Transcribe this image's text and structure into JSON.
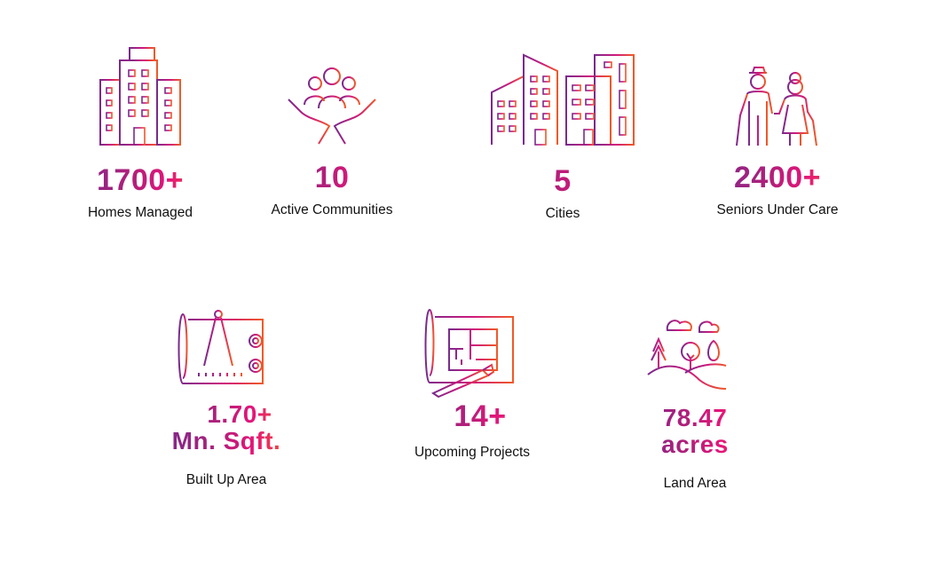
{
  "stats_row1": [
    {
      "value": "1700+",
      "label": "Homes Managed",
      "icon": "buildings-icon"
    },
    {
      "value": "10",
      "label": "Active Communities",
      "icon": "community-hands-icon"
    },
    {
      "value": "5",
      "label": "Cities",
      "icon": "city-skyline-icon"
    },
    {
      "value": "2400+",
      "label": "Seniors Under Care",
      "icon": "seniors-couple-icon"
    }
  ],
  "stats_row2": [
    {
      "value_line1": "1.70+",
      "value_line2": "Mn. Sqft.",
      "label": "Built Up Area",
      "icon": "blueprint-compass-icon"
    },
    {
      "value": "14+",
      "label": "Upcoming Projects",
      "icon": "floor-plan-icon"
    },
    {
      "value_line1": "78.47",
      "value_line2": "acres",
      "label": "Land Area",
      "icon": "landscape-trees-icon"
    }
  ],
  "colors": {
    "gradient_start": "#7a2a8c",
    "gradient_mid": "#e5157a",
    "gradient_end": "#f05a28"
  }
}
